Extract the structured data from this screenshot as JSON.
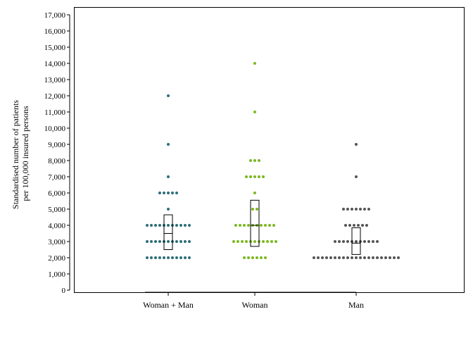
{
  "chart_data": {
    "type": "scatter",
    "subtype": "dot-strip-with-box",
    "ylabel_lines": [
      "Standardised number of patients",
      "per 100,000 insured persons"
    ],
    "ylim": [
      0,
      17000
    ],
    "yticks": [
      0,
      1000,
      2000,
      3000,
      4000,
      5000,
      6000,
      7000,
      8000,
      9000,
      10000,
      11000,
      12000,
      13000,
      14000,
      15000,
      16000,
      17000
    ],
    "ytick_labels": [
      "0",
      "1,000",
      "2,000",
      "3,000",
      "4,000",
      "5,000",
      "6,000",
      "7,000",
      "8,000",
      "9,000",
      "10,000",
      "11,000",
      "12,000",
      "13,000",
      "14,000",
      "15,000",
      "16,000",
      "17,000"
    ],
    "grid": false,
    "categories": [
      "Woman + Man",
      "Woman",
      "Man"
    ],
    "series": [
      {
        "color": "#2c6e78",
        "values": [
          2000,
          2000,
          2000,
          2000,
          2000,
          2000,
          2000,
          2000,
          2000,
          2000,
          2000,
          3000,
          3000,
          3000,
          3000,
          3000,
          3000,
          3000,
          3000,
          3000,
          3000,
          3000,
          4000,
          4000,
          4000,
          4000,
          4000,
          4000,
          4000,
          4000,
          4000,
          4000,
          4000,
          5000,
          6000,
          6000,
          6000,
          6000,
          6000,
          7000,
          9000,
          12000
        ],
        "box": {
          "q1": 2500,
          "median": 3500,
          "q3": 4650
        }
      },
      {
        "color": "#7bb821",
        "values": [
          2000,
          2000,
          2000,
          2000,
          2000,
          2000,
          3000,
          3000,
          3000,
          3000,
          3000,
          3000,
          3000,
          3000,
          3000,
          3000,
          3000,
          4000,
          4000,
          4000,
          4000,
          4000,
          4000,
          4000,
          4000,
          4000,
          4000,
          5000,
          5000,
          6000,
          7000,
          7000,
          7000,
          7000,
          7000,
          8000,
          8000,
          8000,
          11000,
          14000
        ],
        "box": {
          "q1": 2700,
          "median": 4000,
          "q3": 5550
        }
      },
      {
        "color": "#555555",
        "values": [
          2000,
          2000,
          2000,
          2000,
          2000,
          2000,
          2000,
          2000,
          2000,
          2000,
          2000,
          2000,
          2000,
          2000,
          2000,
          2000,
          2000,
          2000,
          2000,
          2000,
          2000,
          3000,
          3000,
          3000,
          3000,
          3000,
          3000,
          3000,
          3000,
          3000,
          3000,
          3000,
          4000,
          4000,
          4000,
          4000,
          4000,
          4000,
          5000,
          5000,
          5000,
          5000,
          5000,
          5000,
          5000,
          7000,
          9000
        ],
        "box": {
          "q1": 2200,
          "median": 2900,
          "q3": 3850
        }
      }
    ]
  }
}
